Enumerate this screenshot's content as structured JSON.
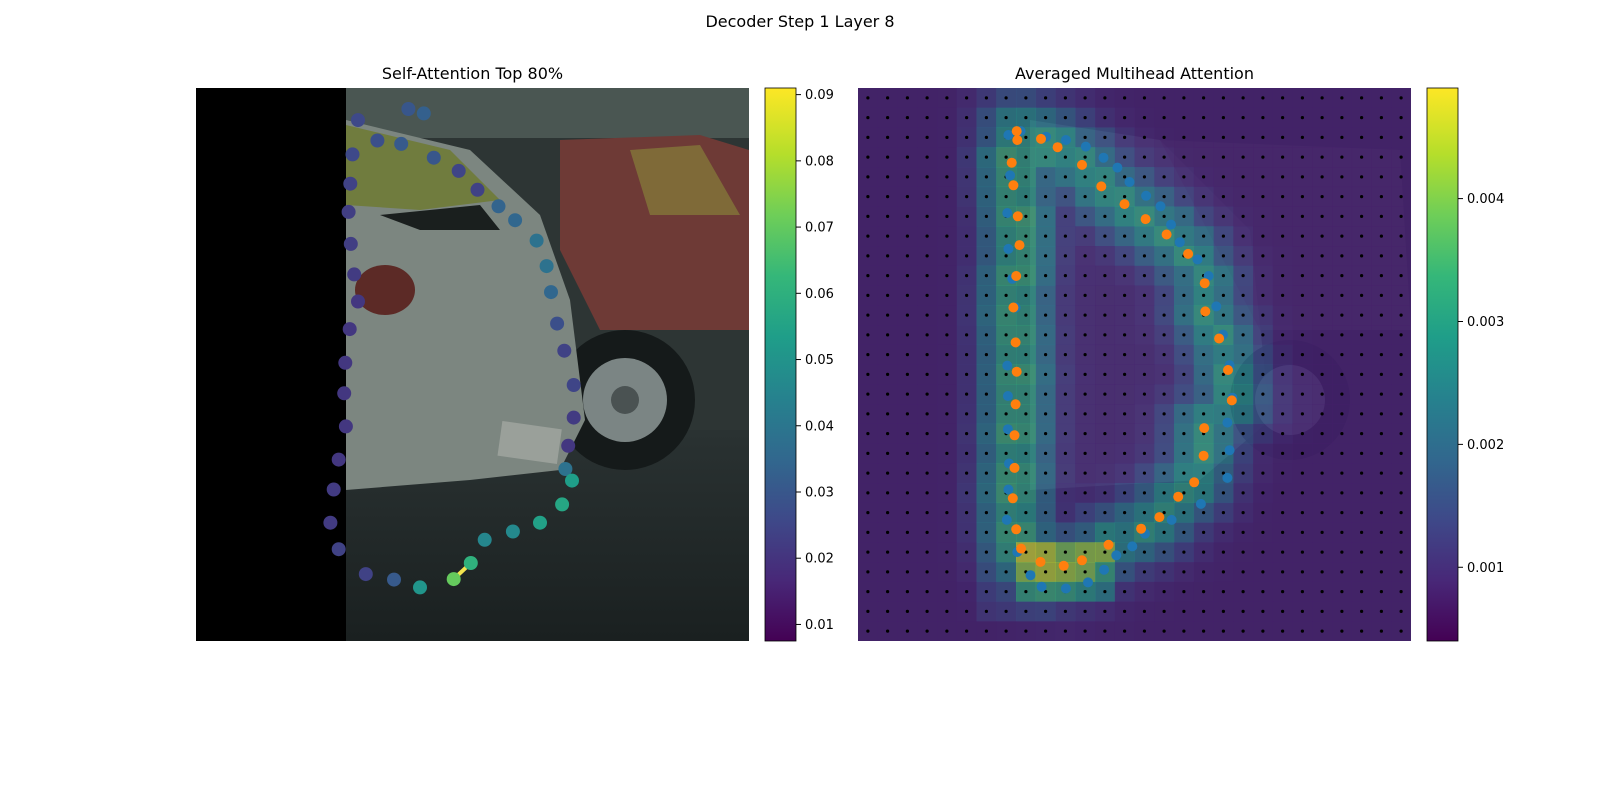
{
  "figure": {
    "suptitle": "Decoder Step 1 Layer 8"
  },
  "chart_data": [
    {
      "type": "scatter",
      "title": "Self-Attention Top 80%",
      "background": "image: two parked cars (silver hatchback in front, red car behind) on asphalt; black padding strip on left",
      "colormap": "viridis",
      "colorbar": {
        "range": [
          0.0075,
          0.091
        ],
        "ticks": [
          0.01,
          0.02,
          0.03,
          0.04,
          0.05,
          0.06,
          0.07,
          0.08,
          0.09
        ],
        "tick_labels": [
          "0.01",
          "0.02",
          "0.03",
          "0.04",
          "0.05",
          "0.06",
          "0.07",
          "0.08",
          "0.09"
        ]
      },
      "highlight_segment": {
        "from_index": 42,
        "to_index": 43,
        "color": "#f3e44f"
      },
      "points": [
        {
          "x": 0.328,
          "y": 0.095,
          "v": 0.028
        },
        {
          "x": 0.371,
          "y": 0.101,
          "v": 0.031
        },
        {
          "x": 0.43,
          "y": 0.126,
          "v": 0.03
        },
        {
          "x": 0.475,
          "y": 0.15,
          "v": 0.025
        },
        {
          "x": 0.509,
          "y": 0.184,
          "v": 0.024
        },
        {
          "x": 0.547,
          "y": 0.214,
          "v": 0.034
        },
        {
          "x": 0.577,
          "y": 0.239,
          "v": 0.035
        },
        {
          "x": 0.616,
          "y": 0.276,
          "v": 0.039
        },
        {
          "x": 0.634,
          "y": 0.322,
          "v": 0.039
        },
        {
          "x": 0.642,
          "y": 0.369,
          "v": 0.035
        },
        {
          "x": 0.653,
          "y": 0.426,
          "v": 0.028
        },
        {
          "x": 0.666,
          "y": 0.475,
          "v": 0.024
        },
        {
          "x": 0.683,
          "y": 0.537,
          "v": 0.025
        },
        {
          "x": 0.683,
          "y": 0.596,
          "v": 0.022
        },
        {
          "x": 0.673,
          "y": 0.647,
          "v": 0.021
        },
        {
          "x": 0.668,
          "y": 0.689,
          "v": 0.039
        },
        {
          "x": 0.68,
          "y": 0.71,
          "v": 0.054
        },
        {
          "x": 0.662,
          "y": 0.753,
          "v": 0.057
        },
        {
          "x": 0.622,
          "y": 0.786,
          "v": 0.055
        },
        {
          "x": 0.573,
          "y": 0.802,
          "v": 0.047
        },
        {
          "x": 0.522,
          "y": 0.817,
          "v": 0.046
        },
        {
          "x": 0.497,
          "y": 0.859,
          "v": 0.061
        },
        {
          "x": 0.466,
          "y": 0.888,
          "v": 0.071
        },
        {
          "x": 0.405,
          "y": 0.903,
          "v": 0.051
        },
        {
          "x": 0.358,
          "y": 0.889,
          "v": 0.031
        },
        {
          "x": 0.307,
          "y": 0.879,
          "v": 0.024
        },
        {
          "x": 0.258,
          "y": 0.834,
          "v": 0.024
        },
        {
          "x": 0.243,
          "y": 0.786,
          "v": 0.022
        },
        {
          "x": 0.249,
          "y": 0.726,
          "v": 0.022
        },
        {
          "x": 0.258,
          "y": 0.672,
          "v": 0.021
        },
        {
          "x": 0.271,
          "y": 0.612,
          "v": 0.021
        },
        {
          "x": 0.268,
          "y": 0.552,
          "v": 0.021
        },
        {
          "x": 0.27,
          "y": 0.497,
          "v": 0.021
        },
        {
          "x": 0.278,
          "y": 0.436,
          "v": 0.021
        },
        {
          "x": 0.293,
          "y": 0.386,
          "v": 0.021
        },
        {
          "x": 0.286,
          "y": 0.337,
          "v": 0.022
        },
        {
          "x": 0.28,
          "y": 0.282,
          "v": 0.023
        },
        {
          "x": 0.276,
          "y": 0.224,
          "v": 0.023
        },
        {
          "x": 0.279,
          "y": 0.173,
          "v": 0.024
        },
        {
          "x": 0.283,
          "y": 0.12,
          "v": 0.026
        },
        {
          "x": 0.293,
          "y": 0.058,
          "v": 0.026
        },
        {
          "x": 0.384,
          "y": 0.038,
          "v": 0.03
        },
        {
          "x": 0.412,
          "y": 0.046,
          "v": 0.033
        }
      ]
    },
    {
      "type": "heatmap",
      "title": "Averaged Multihead Attention",
      "background": "same car image, faded under the attention heatmap",
      "colormap": "viridis",
      "grid": {
        "rows": 28,
        "cols": 28,
        "note": "black dots mark the centre of every grid cell"
      },
      "colorbar": {
        "range": [
          0.0004,
          0.0049
        ],
        "ticks": [
          0.001,
          0.002,
          0.003,
          0.004
        ],
        "tick_labels": [
          "0.001",
          "0.002",
          "0.003",
          "0.004"
        ]
      },
      "series": [
        {
          "color": "#1f77b4",
          "points": [
            {
              "x": 0.272,
              "y": 0.085
            },
            {
              "x": 0.294,
              "y": 0.078
            },
            {
              "x": 0.34,
              "y": 0.088
            },
            {
              "x": 0.376,
              "y": 0.094
            },
            {
              "x": 0.412,
              "y": 0.106
            },
            {
              "x": 0.444,
              "y": 0.126
            },
            {
              "x": 0.469,
              "y": 0.144
            },
            {
              "x": 0.491,
              "y": 0.17
            },
            {
              "x": 0.521,
              "y": 0.195
            },
            {
              "x": 0.547,
              "y": 0.214
            },
            {
              "x": 0.566,
              "y": 0.247
            },
            {
              "x": 0.582,
              "y": 0.279
            },
            {
              "x": 0.614,
              "y": 0.31
            },
            {
              "x": 0.634,
              "y": 0.34
            },
            {
              "x": 0.648,
              "y": 0.395
            },
            {
              "x": 0.66,
              "y": 0.446
            },
            {
              "x": 0.672,
              "y": 0.501
            },
            {
              "x": 0.677,
              "y": 0.56
            },
            {
              "x": 0.668,
              "y": 0.605
            },
            {
              "x": 0.672,
              "y": 0.655
            },
            {
              "x": 0.668,
              "y": 0.705
            },
            {
              "x": 0.62,
              "y": 0.752
            },
            {
              "x": 0.567,
              "y": 0.781
            },
            {
              "x": 0.519,
              "y": 0.806
            },
            {
              "x": 0.496,
              "y": 0.829
            },
            {
              "x": 0.467,
              "y": 0.845
            },
            {
              "x": 0.445,
              "y": 0.871
            },
            {
              "x": 0.416,
              "y": 0.894
            },
            {
              "x": 0.376,
              "y": 0.905
            },
            {
              "x": 0.332,
              "y": 0.902
            },
            {
              "x": 0.312,
              "y": 0.881
            },
            {
              "x": 0.288,
              "y": 0.839
            },
            {
              "x": 0.269,
              "y": 0.781
            },
            {
              "x": 0.272,
              "y": 0.726
            },
            {
              "x": 0.273,
              "y": 0.679
            },
            {
              "x": 0.271,
              "y": 0.617
            },
            {
              "x": 0.271,
              "y": 0.557
            },
            {
              "x": 0.27,
              "y": 0.502
            },
            {
              "x": 0.285,
              "y": 0.397
            },
            {
              "x": 0.279,
              "y": 0.345
            },
            {
              "x": 0.272,
              "y": 0.291
            },
            {
              "x": 0.27,
              "y": 0.226
            },
            {
              "x": 0.275,
              "y": 0.158
            }
          ]
        },
        {
          "color": "#ff7f0e",
          "points": [
            {
              "x": 0.287,
              "y": 0.078
            },
            {
              "x": 0.331,
              "y": 0.092
            },
            {
              "x": 0.361,
              "y": 0.107
            },
            {
              "x": 0.405,
              "y": 0.139
            },
            {
              "x": 0.44,
              "y": 0.178
            },
            {
              "x": 0.482,
              "y": 0.21
            },
            {
              "x": 0.52,
              "y": 0.237
            },
            {
              "x": 0.558,
              "y": 0.265
            },
            {
              "x": 0.597,
              "y": 0.3
            },
            {
              "x": 0.627,
              "y": 0.353
            },
            {
              "x": 0.628,
              "y": 0.404
            },
            {
              "x": 0.653,
              "y": 0.453
            },
            {
              "x": 0.669,
              "y": 0.51
            },
            {
              "x": 0.676,
              "y": 0.565
            },
            {
              "x": 0.626,
              "y": 0.615
            },
            {
              "x": 0.625,
              "y": 0.665
            },
            {
              "x": 0.608,
              "y": 0.713
            },
            {
              "x": 0.579,
              "y": 0.739
            },
            {
              "x": 0.545,
              "y": 0.776
            },
            {
              "x": 0.512,
              "y": 0.797
            },
            {
              "x": 0.453,
              "y": 0.826
            },
            {
              "x": 0.405,
              "y": 0.854
            },
            {
              "x": 0.372,
              "y": 0.864
            },
            {
              "x": 0.33,
              "y": 0.857
            },
            {
              "x": 0.295,
              "y": 0.833
            },
            {
              "x": 0.286,
              "y": 0.798
            },
            {
              "x": 0.28,
              "y": 0.742
            },
            {
              "x": 0.283,
              "y": 0.687
            },
            {
              "x": 0.283,
              "y": 0.628
            },
            {
              "x": 0.285,
              "y": 0.572
            },
            {
              "x": 0.287,
              "y": 0.513
            },
            {
              "x": 0.285,
              "y": 0.46
            },
            {
              "x": 0.281,
              "y": 0.397
            },
            {
              "x": 0.286,
              "y": 0.34
            },
            {
              "x": 0.292,
              "y": 0.284
            },
            {
              "x": 0.289,
              "y": 0.232
            },
            {
              "x": 0.281,
              "y": 0.176
            },
            {
              "x": 0.278,
              "y": 0.135
            },
            {
              "x": 0.288,
              "y": 0.094
            }
          ]
        }
      ]
    }
  ]
}
